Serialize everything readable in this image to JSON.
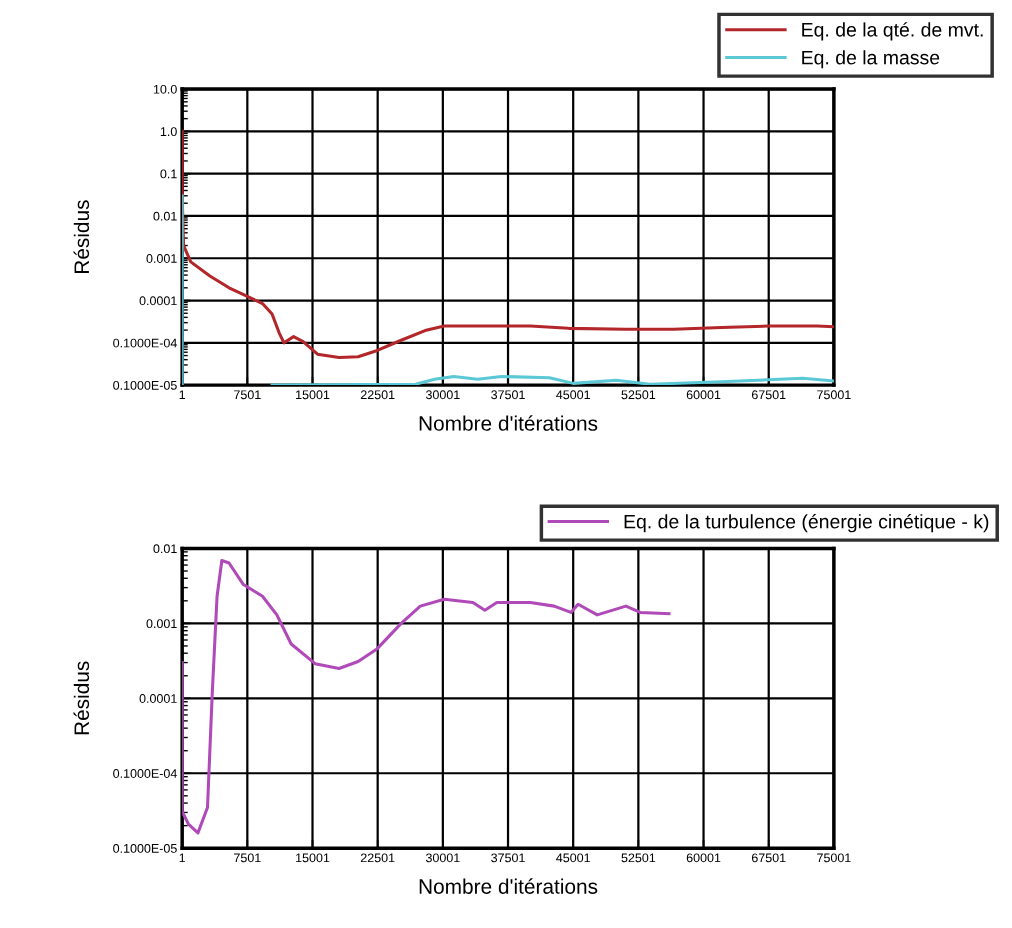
{
  "chart_data": [
    {
      "type": "line",
      "xlabel": "Nombre d'itérations",
      "ylabel": "Résidus",
      "log": "y",
      "grid": true,
      "legend": "top right",
      "xlim": [
        1,
        75001
      ],
      "xticks": [
        1,
        7501,
        15001,
        22501,
        30001,
        37501,
        45001,
        52501,
        60001,
        67501,
        75001
      ],
      "ylim": [
        1e-06,
        10
      ],
      "yticks": [
        {
          "value": 1e-06,
          "label": "0.1000E-05"
        },
        {
          "value": 1e-05,
          "label": "0.1000E-04"
        },
        {
          "value": 0.0001,
          "label": "0.0001"
        },
        {
          "value": 0.001,
          "label": "0.001"
        },
        {
          "value": 0.01,
          "label": "0.01"
        },
        {
          "value": 0.1,
          "label": "0.1"
        },
        {
          "value": 1,
          "label": "1.0"
        },
        {
          "value": 10,
          "label": "10.0"
        }
      ],
      "series": [
        {
          "name": "Eq. de la qté. de mvt.",
          "color": "#b3262a",
          "x": [
            1,
            1,
            166,
            991,
            3193,
            5394,
            7320,
            9246,
            10347,
            11172,
            11723,
            12824,
            13924,
            15575,
            18052,
            20253,
            22454,
            25206,
            27957,
            30158,
            34560,
            40063,
            44465,
            51068,
            56571,
            62074,
            67577,
            73080,
            75001
          ],
          "values": [
            1.0,
            0.03,
            0.002,
            0.00082,
            0.00038,
            0.0002,
            0.00013,
            8.5e-05,
            4.8e-05,
            1.7e-05,
            1e-05,
            1.4e-05,
            1.07e-05,
            5.4e-06,
            4.5e-06,
            4.7e-06,
            6.6e-06,
            1.15e-05,
            1.95e-05,
            2.5e-05,
            2.5e-05,
            2.5e-05,
            2.2e-05,
            2.1e-05,
            2.1e-05,
            2.3e-05,
            2.5e-05,
            2.5e-05,
            2.4e-05
          ]
        },
        {
          "name": "Eq. de la masse",
          "color": "#5bc8d5",
          "x": [
            1,
            1,
            5000,
            10347,
            26855,
            29056,
            31257,
            34009,
            36760,
            42263,
            45015,
            49967,
            53819,
            62074,
            71430,
            75001
          ],
          "values": [
            0.03,
            1e-06,
            null,
            1e-06,
            1.05e-06,
            1.37e-06,
            1.6e-06,
            1.37e-06,
            1.6e-06,
            1.5e-06,
            1.1e-06,
            1.3e-06,
            1.05e-06,
            1.2e-06,
            1.45e-06,
            1.25e-06
          ]
        }
      ]
    },
    {
      "type": "line",
      "xlabel": "Nombre d'itérations",
      "ylabel": "Résidus",
      "log": "y",
      "grid": true,
      "legend": "top right",
      "xlim": [
        1,
        75001
      ],
      "xticks": [
        1,
        7501,
        15001,
        22501,
        30001,
        37501,
        45001,
        52501,
        60001,
        67501,
        75001
      ],
      "ylim": [
        1e-06,
        0.01
      ],
      "yticks": [
        {
          "value": 1e-06,
          "label": "0.1000E-05"
        },
        {
          "value": 1e-05,
          "label": "0.1000E-04"
        },
        {
          "value": 0.0001,
          "label": "0.0001"
        },
        {
          "value": 0.001,
          "label": "0.001"
        },
        {
          "value": 0.01,
          "label": "0.01"
        }
      ],
      "series": [
        {
          "name": "Eq. de la turbulence (énergie cinétique - k)",
          "color": "#b04ab8",
          "x": [
            1,
            1,
            716,
            1817,
            2917,
            3468,
            4018,
            4568,
            5394,
            7045,
            9246,
            10897,
            12549,
            15300,
            18052,
            20253,
            22454,
            25206,
            27406,
            30158,
            33459,
            34835,
            36210,
            40063,
            42814,
            44740,
            45566,
            47767,
            51068,
            52719,
            56021
          ],
          "values": [
            0.0003,
            3.1e-06,
            2.1e-06,
            1.6e-06,
            3.5e-06,
            0.00012,
            0.0023,
            0.0069,
            0.0064,
            0.0033,
            0.0023,
            0.0013,
            0.00053,
            0.00029,
            0.00025,
            0.00031,
            0.00046,
            0.001,
            0.0017,
            0.0021,
            0.0019,
            0.0015,
            0.0019,
            0.0019,
            0.0017,
            0.0014,
            0.0018,
            0.0013,
            0.0017,
            0.0014,
            0.00135
          ]
        }
      ]
    }
  ]
}
